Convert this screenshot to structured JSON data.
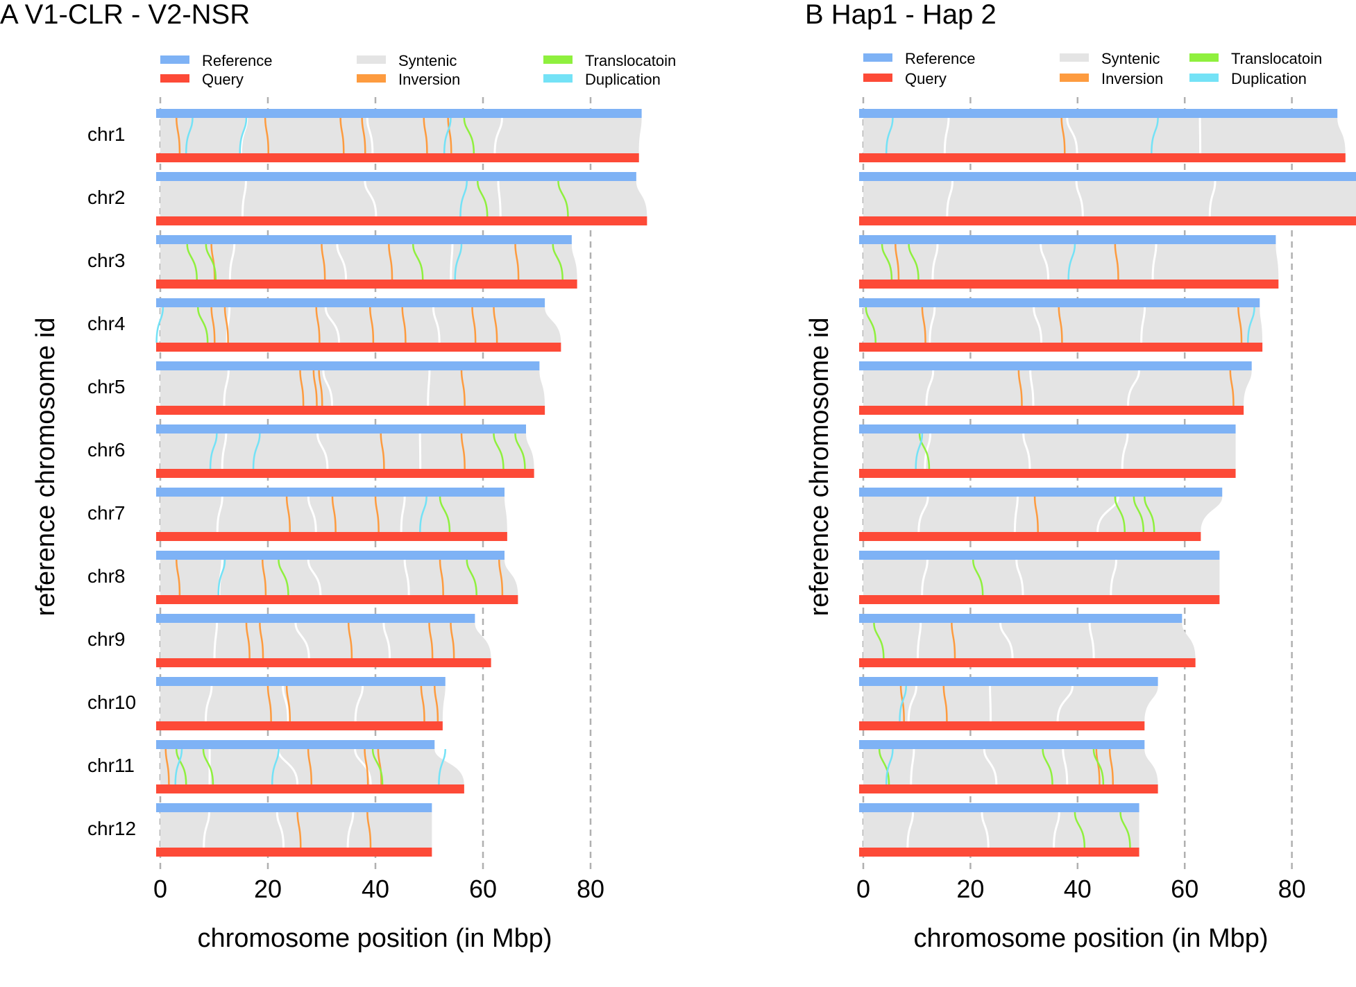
{
  "chart_data": [
    {
      "type": "synteny",
      "title": "A V1-CLR - V2-NSR",
      "xlabel": "chromosome position (in Mbp)",
      "ylabel": "reference chromosome id",
      "xlim": [
        0,
        90
      ],
      "x_ticks": [
        0,
        20,
        40,
        60,
        80
      ],
      "grid": "dashed vertical at ticks",
      "legend": [
        {
          "label": "Reference",
          "color": "#7eb2f5"
        },
        {
          "label": "Query",
          "color": "#fd4a37"
        },
        {
          "label": "Syntenic",
          "color": "#e4e4e4"
        },
        {
          "label": "Inversion",
          "color": "#fd9b3f"
        },
        {
          "label": "Translocatoin",
          "color": "#8ff03e"
        },
        {
          "label": "Duplication",
          "color": "#74e2f6"
        }
      ],
      "chromosomes": [
        {
          "name": "chr1",
          "reference_mbp": 89.5,
          "query_mbp": 89.0,
          "inversions": [
            3,
            19.5,
            33.5,
            37.5,
            49,
            53.5
          ],
          "translocations": [
            56.5
          ],
          "duplications": [
            6,
            16,
            54
          ]
        },
        {
          "name": "chr2",
          "reference_mbp": 88.5,
          "query_mbp": 90.5,
          "inversions": [],
          "translocations": [
            59,
            74
          ],
          "duplications": [
            57
          ]
        },
        {
          "name": "chr3",
          "reference_mbp": 76.5,
          "query_mbp": 77.5,
          "inversions": [
            9.5,
            30,
            42.5,
            66
          ],
          "translocations": [
            5,
            8.5,
            47,
            73
          ],
          "duplications": [
            56
          ]
        },
        {
          "name": "chr4",
          "reference_mbp": 71.5,
          "query_mbp": 74.5,
          "inversions": [
            9.5,
            12,
            29,
            39,
            45,
            58,
            62
          ],
          "translocations": [
            7
          ],
          "duplications": [
            0.5
          ]
        },
        {
          "name": "chr5",
          "reference_mbp": 70.5,
          "query_mbp": 71.5,
          "inversions": [
            26,
            28.5,
            29.5,
            56
          ],
          "translocations": [],
          "duplications": []
        },
        {
          "name": "chr6",
          "reference_mbp": 68,
          "query_mbp": 69.5,
          "inversions": [
            41,
            56
          ],
          "translocations": [
            62,
            66
          ],
          "duplications": [
            10.5,
            18.5
          ]
        },
        {
          "name": "chr7",
          "reference_mbp": 64,
          "query_mbp": 64.5,
          "inversions": [
            23.5,
            32,
            40
          ],
          "translocations": [
            52
          ],
          "duplications": [
            49.5
          ]
        },
        {
          "name": "chr8",
          "reference_mbp": 64,
          "query_mbp": 66.5,
          "inversions": [
            3,
            19,
            52,
            63
          ],
          "translocations": [
            22,
            57
          ],
          "duplications": [
            12
          ]
        },
        {
          "name": "chr9",
          "reference_mbp": 58.5,
          "query_mbp": 61.5,
          "inversions": [
            16,
            18.5,
            35,
            50,
            54
          ],
          "translocations": [],
          "duplications": []
        },
        {
          "name": "chr10",
          "reference_mbp": 53,
          "query_mbp": 52.5,
          "inversions": [
            20,
            23.5,
            48.5,
            51
          ],
          "translocations": [],
          "duplications": []
        },
        {
          "name": "chr11",
          "reference_mbp": 51,
          "query_mbp": 56.5,
          "inversions": [
            1,
            27.5,
            38,
            40.5
          ],
          "translocations": [
            3,
            8,
            39.5
          ],
          "duplications": [
            4,
            22,
            53
          ]
        },
        {
          "name": "chr12",
          "reference_mbp": 50.5,
          "query_mbp": 50.5,
          "inversions": [
            25.5,
            38.5
          ],
          "translocations": [],
          "duplications": []
        }
      ]
    },
    {
      "type": "synteny",
      "title": "B Hap1 - Hap 2",
      "xlabel": "chromosome position (in Mbp)",
      "ylabel": "reference chromosome id",
      "xlim": [
        0,
        92
      ],
      "x_ticks": [
        0,
        20,
        40,
        60,
        80
      ],
      "grid": "dashed vertical at ticks",
      "legend": [
        {
          "label": "Reference",
          "color": "#7eb2f5"
        },
        {
          "label": "Query",
          "color": "#fd4a37"
        },
        {
          "label": "Syntenic",
          "color": "#e4e4e4"
        },
        {
          "label": "Inversion",
          "color": "#fd9b3f"
        },
        {
          "label": "Translocatoin",
          "color": "#8ff03e"
        },
        {
          "label": "Duplication",
          "color": "#74e2f6"
        }
      ],
      "chromosomes": [
        {
          "name": "chr1",
          "reference_mbp": 88.5,
          "query_mbp": 90,
          "inversions": [
            37
          ],
          "translocations": [],
          "duplications": [
            5.5,
            55
          ]
        },
        {
          "name": "chr2",
          "reference_mbp": 92.5,
          "query_mbp": 92.5,
          "inversions": [],
          "translocations": [],
          "duplications": []
        },
        {
          "name": "chr3",
          "reference_mbp": 77,
          "query_mbp": 77.5,
          "inversions": [
            6,
            47
          ],
          "translocations": [
            3.5,
            8.5
          ],
          "duplications": [
            39.5
          ]
        },
        {
          "name": "chr4",
          "reference_mbp": 74,
          "query_mbp": 74.5,
          "inversions": [
            11,
            36.5,
            70
          ],
          "translocations": [
            0.5
          ],
          "duplications": [
            73
          ]
        },
        {
          "name": "chr5",
          "reference_mbp": 72.5,
          "query_mbp": 71,
          "inversions": [
            29,
            68.5
          ],
          "translocations": [],
          "duplications": []
        },
        {
          "name": "chr6",
          "reference_mbp": 69.5,
          "query_mbp": 69.5,
          "inversions": [],
          "translocations": [
            10.5
          ],
          "duplications": [
            11
          ]
        },
        {
          "name": "chr7",
          "reference_mbp": 67,
          "query_mbp": 63,
          "inversions": [
            32
          ],
          "translocations": [
            47,
            50.5,
            52.5
          ],
          "duplications": []
        },
        {
          "name": "chr8",
          "reference_mbp": 66.5,
          "query_mbp": 66.5,
          "inversions": [],
          "translocations": [
            20.5
          ],
          "duplications": []
        },
        {
          "name": "chr9",
          "reference_mbp": 59.5,
          "query_mbp": 62,
          "inversions": [
            16.5
          ],
          "translocations": [
            2
          ],
          "duplications": []
        },
        {
          "name": "chr10",
          "reference_mbp": 55,
          "query_mbp": 52.5,
          "inversions": [
            7,
            15
          ],
          "translocations": [],
          "duplications": [
            8
          ]
        },
        {
          "name": "chr11",
          "reference_mbp": 52.5,
          "query_mbp": 55,
          "inversions": [
            43.5,
            46
          ],
          "translocations": [
            3,
            33.5,
            43
          ],
          "duplications": [
            5.5
          ]
        },
        {
          "name": "chr12",
          "reference_mbp": 51.5,
          "query_mbp": 51.5,
          "inversions": [],
          "translocations": [
            39.5,
            48
          ],
          "duplications": []
        }
      ]
    }
  ]
}
